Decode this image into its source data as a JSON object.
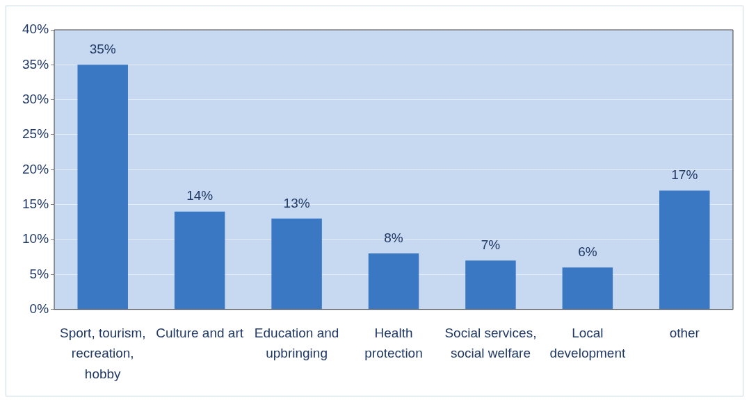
{
  "chart_data": {
    "type": "bar",
    "categories": [
      "Sport, tourism, recreation, hobby",
      "Culture and art",
      "Education and upbringing",
      "Health protection",
      "Social services, social welfare",
      "Local development",
      "other"
    ],
    "values": [
      35,
      14,
      13,
      8,
      7,
      6,
      17
    ],
    "value_labels": [
      "35%",
      "14%",
      "13%",
      "8%",
      "7%",
      "6%",
      "17%"
    ],
    "color": "#3b78c4",
    "ylim": [
      0,
      40
    ],
    "yticks": [
      {
        "value": 0,
        "label": "0%"
      },
      {
        "value": 5,
        "label": "5%"
      },
      {
        "value": 10,
        "label": "10%"
      },
      {
        "value": 15,
        "label": "15%"
      },
      {
        "value": 20,
        "label": "20%"
      },
      {
        "value": 25,
        "label": "25%"
      },
      {
        "value": 30,
        "label": "30%"
      },
      {
        "value": 35,
        "label": "35%"
      },
      {
        "value": 40,
        "label": "40%"
      }
    ],
    "grid": "y",
    "legend": false
  }
}
